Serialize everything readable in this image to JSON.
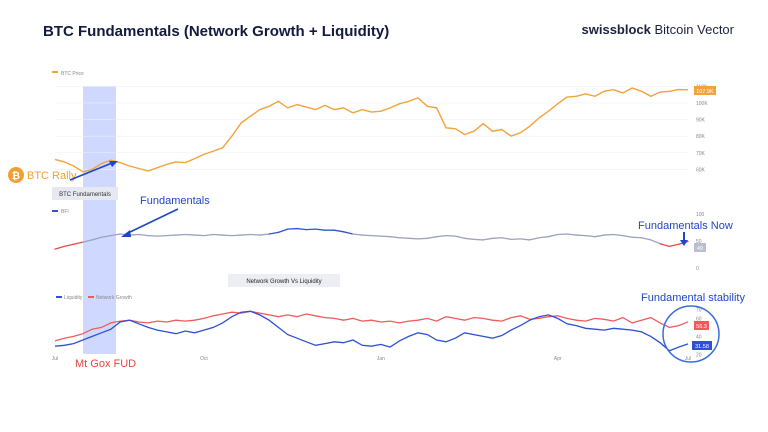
{
  "header": {
    "title": "BTC Fundamentals (Network Growth + Liquidity)",
    "brand_bold": "swissblock",
    "brand_rest": " Bitcoin Vector"
  },
  "annotations": {
    "btc_rally": "BTC Rally",
    "fundamentals": "Fundamentals",
    "fundamentals_now": "Fundamentals Now",
    "fundamental_stability": "Fundamental stability",
    "mt_gox_fud": "Mt Gox FUD"
  },
  "colors": {
    "price": "#f2a33a",
    "fundamentals": "#9aa3bd",
    "fundamentals_high": "#2f53d8",
    "fundamentals_low": "#e84a4a",
    "liquidity": "#2f4fd4",
    "network_growth": "#ef5b5b",
    "highlight": "#9fb2ff",
    "annotation_blue": "#1e46c8",
    "annotation_orange": "#f0a030",
    "annotation_red": "#e8453c"
  },
  "chart_data": [
    {
      "type": "line",
      "legend": [
        "BTC Price"
      ],
      "y_ticks": [
        "110K",
        "100K",
        "90K",
        "80K",
        "70K",
        "60K"
      ],
      "y_tick_values": [
        110000,
        100000,
        90000,
        80000,
        70000,
        60000
      ],
      "ylim": [
        56000,
        112000
      ],
      "last_value_label": "107.9K",
      "series": [
        {
          "name": "BTC Price",
          "values": [
            66000,
            64500,
            62000,
            58500,
            60000,
            63500,
            65500,
            64000,
            62000,
            60500,
            59000,
            61000,
            63000,
            64500,
            64000,
            66500,
            69000,
            71000,
            73000,
            80000,
            88000,
            92000,
            96000,
            98000,
            101000,
            97000,
            99000,
            97500,
            96000,
            98500,
            96000,
            97000,
            94000,
            96000,
            94500,
            95000,
            97000,
            99500,
            101000,
            103000,
            98000,
            97000,
            85000,
            84500,
            81000,
            83000,
            87500,
            83000,
            84000,
            80000,
            82000,
            86000,
            91000,
            95000,
            99500,
            103500,
            104000,
            105500,
            104000,
            107000,
            108000,
            106000,
            109000,
            107000,
            104000,
            106500,
            107000,
            108000,
            107900
          ]
        }
      ]
    },
    {
      "type": "line",
      "legend": [
        "BTC Fundamentals",
        "BFI"
      ],
      "y_ticks": [
        "100",
        "50",
        "0"
      ],
      "y_tick_values": [
        100,
        50,
        0
      ],
      "ylim": [
        0,
        100
      ],
      "last_value_label": "49",
      "series": [
        {
          "name": "BFI",
          "values": [
            35,
            40,
            44,
            48,
            52,
            57,
            60,
            63,
            61,
            62,
            60,
            59,
            60,
            61,
            62,
            61,
            60,
            62,
            61,
            60,
            61,
            62,
            61,
            63,
            66,
            72,
            73,
            71,
            72,
            70,
            70,
            67,
            63,
            61,
            60,
            59,
            58,
            56,
            55,
            54,
            55,
            58,
            60,
            59,
            55,
            53,
            52,
            55,
            56,
            53,
            54,
            52,
            56,
            58,
            62,
            63,
            61,
            60,
            58,
            61,
            62,
            60,
            57,
            56,
            52,
            45,
            40,
            44,
            49
          ]
        }
      ]
    },
    {
      "type": "line",
      "title": "Network Growth Vs Liquidity",
      "legend": [
        "Liquidity",
        "Network Growth"
      ],
      "y_ticks": [
        "70",
        "60",
        "50",
        "40",
        "30",
        "20"
      ],
      "y_tick_values": [
        70,
        60,
        50,
        40,
        30,
        20
      ],
      "ylim": [
        17,
        75
      ],
      "last_value_labels": [
        "56.3",
        "31.58"
      ],
      "series": [
        {
          "name": "Network Growth",
          "values": [
            35,
            38,
            40,
            43,
            48,
            50,
            55,
            57,
            58,
            56,
            55,
            57,
            56,
            58,
            57,
            58,
            60,
            63,
            65,
            67,
            66,
            68,
            66,
            64,
            62,
            64,
            62,
            65,
            63,
            61,
            60,
            58,
            60,
            57,
            58,
            56,
            57,
            55,
            57,
            58,
            60,
            57,
            62,
            60,
            58,
            61,
            60,
            58,
            57,
            61,
            63,
            59,
            60,
            62,
            63,
            60,
            58,
            57,
            60,
            59,
            57,
            61,
            55,
            58,
            61,
            55,
            50,
            52,
            56.3
          ]
        },
        {
          "name": "Liquidity",
          "values": [
            29,
            30,
            32,
            36,
            40,
            44,
            48,
            56,
            58,
            54,
            50,
            47,
            45,
            43,
            46,
            44,
            47,
            50,
            55,
            62,
            67,
            68,
            64,
            58,
            50,
            42,
            38,
            34,
            30,
            32,
            34,
            33,
            36,
            30,
            29,
            31,
            28,
            35,
            40,
            44,
            42,
            36,
            34,
            38,
            44,
            42,
            40,
            38,
            41,
            47,
            52,
            58,
            62,
            64,
            60,
            54,
            52,
            49,
            48,
            47,
            49,
            48,
            47,
            45,
            40,
            33,
            24,
            28,
            31.58
          ]
        }
      ]
    }
  ],
  "x_axis": {
    "ticks": [
      "Jul",
      "Oct",
      "Jan",
      "Apr",
      "Jul"
    ],
    "tick_index": [
      0,
      16,
      35,
      54,
      68
    ]
  }
}
